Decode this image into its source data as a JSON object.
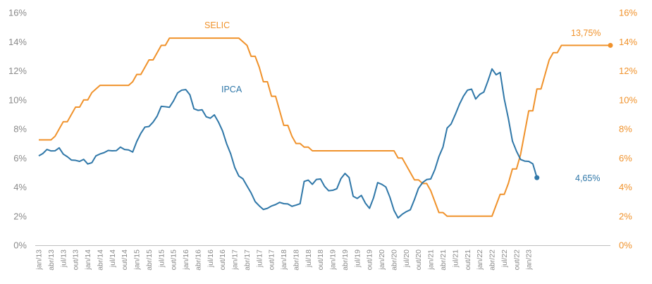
{
  "chart_data": {
    "type": "line",
    "title": "",
    "xlabel": "",
    "ylabel": "",
    "ylim": [
      0,
      16
    ],
    "y2lim": [
      0,
      16
    ],
    "yticks": [
      "0%",
      "2%",
      "4%",
      "6%",
      "8%",
      "10%",
      "12%",
      "14%",
      "16%"
    ],
    "y2ticks": [
      "0%",
      "2%",
      "4%",
      "6%",
      "8%",
      "10%",
      "12%",
      "14%",
      "16%"
    ],
    "grid": false,
    "x_tick_labels": [
      "jan/13",
      "abr/13",
      "jul/13",
      "out/13",
      "jan/14",
      "abr/14",
      "jul/14",
      "out/14",
      "jan/15",
      "abr/15",
      "jul/15",
      "out/15",
      "jan/16",
      "abr/16",
      "jul/16",
      "out/16",
      "jan/17",
      "abr/17",
      "jul/17",
      "out/17",
      "jan/18",
      "abr/18",
      "jul/18",
      "out/18",
      "jan/19",
      "abr/19",
      "jul/19",
      "out/19",
      "jan/20",
      "abr/20",
      "jul/20",
      "out/20",
      "jan/21",
      "abr/21",
      "jul/21",
      "out/21",
      "jan/22",
      "abr/22",
      "jul/22",
      "out/22",
      "jan/23"
    ],
    "x_start": "2013-01",
    "x_end": "2023-03",
    "colors": {
      "selic": "#f0922b",
      "ipca": "#2f77a8",
      "axis": "#bfbfbf",
      "left_ticks": "#8a8a8a"
    },
    "series": [
      {
        "name": "SELIC",
        "axis": "right",
        "label": "SELIC",
        "end_label": "13,75%",
        "values": [
          7.25,
          7.25,
          7.25,
          7.25,
          7.5,
          8.0,
          8.5,
          8.5,
          9.0,
          9.5,
          9.5,
          10.0,
          10.0,
          10.5,
          10.75,
          11.0,
          11.0,
          11.0,
          11.0,
          11.0,
          11.0,
          11.0,
          11.0,
          11.25,
          11.75,
          11.75,
          12.25,
          12.75,
          12.75,
          13.25,
          13.75,
          13.75,
          14.25,
          14.25,
          14.25,
          14.25,
          14.25,
          14.25,
          14.25,
          14.25,
          14.25,
          14.25,
          14.25,
          14.25,
          14.25,
          14.25,
          14.25,
          14.25,
          14.25,
          14.25,
          14.0,
          13.75,
          13.0,
          13.0,
          12.25,
          11.25,
          11.25,
          10.25,
          10.25,
          9.25,
          8.25,
          8.25,
          7.5,
          7.0,
          7.0,
          6.75,
          6.75,
          6.5,
          6.5,
          6.5,
          6.5,
          6.5,
          6.5,
          6.5,
          6.5,
          6.5,
          6.5,
          6.5,
          6.5,
          6.5,
          6.5,
          6.5,
          6.5,
          6.5,
          6.5,
          6.5,
          6.5,
          6.5,
          6.0,
          6.0,
          5.5,
          5.0,
          4.5,
          4.5,
          4.25,
          4.25,
          3.75,
          3.0,
          2.25,
          2.25,
          2.0,
          2.0,
          2.0,
          2.0,
          2.0,
          2.0,
          2.0,
          2.0,
          2.0,
          2.0,
          2.0,
          2.0,
          2.75,
          3.5,
          3.5,
          4.25,
          5.25,
          5.25,
          6.25,
          7.75,
          9.25,
          9.25,
          10.75,
          10.75,
          11.75,
          12.75,
          13.25,
          13.25,
          13.75,
          13.75,
          13.75,
          13.75,
          13.75,
          13.75,
          13.75,
          13.75,
          13.75,
          13.75,
          13.75,
          13.75,
          13.75
        ]
      },
      {
        "name": "IPCA",
        "axis": "left",
        "label": "IPCA",
        "end_label": "4,65%",
        "values": [
          6.15,
          6.31,
          6.59,
          6.49,
          6.5,
          6.7,
          6.27,
          6.09,
          5.86,
          5.84,
          5.77,
          5.91,
          5.59,
          5.68,
          6.15,
          6.28,
          6.37,
          6.52,
          6.5,
          6.51,
          6.75,
          6.59,
          6.56,
          6.41,
          7.14,
          7.7,
          8.13,
          8.17,
          8.47,
          8.89,
          9.56,
          9.53,
          9.49,
          9.93,
          10.48,
          10.67,
          10.71,
          10.36,
          9.39,
          9.28,
          9.32,
          8.84,
          8.74,
          8.97,
          8.48,
          7.87,
          6.99,
          6.29,
          5.35,
          4.76,
          4.57,
          4.08,
          3.6,
          3.0,
          2.71,
          2.46,
          2.54,
          2.7,
          2.8,
          2.95,
          2.86,
          2.84,
          2.68,
          2.76,
          2.86,
          4.39,
          4.48,
          4.19,
          4.53,
          4.56,
          4.05,
          3.75,
          3.78,
          3.89,
          4.58,
          4.94,
          4.66,
          3.37,
          3.22,
          3.43,
          2.89,
          2.54,
          3.27,
          4.31,
          4.19,
          4.01,
          3.3,
          2.4,
          1.88,
          2.13,
          2.31,
          2.44,
          3.14,
          3.92,
          4.31,
          4.52,
          4.56,
          5.2,
          6.1,
          6.76,
          8.06,
          8.35,
          8.99,
          9.68,
          10.25,
          10.67,
          10.74,
          10.06,
          10.38,
          10.54,
          11.3,
          12.13,
          11.73,
          11.89,
          10.07,
          8.73,
          7.17,
          6.47,
          5.9,
          5.79,
          5.77,
          5.6,
          4.65
        ]
      }
    ]
  }
}
